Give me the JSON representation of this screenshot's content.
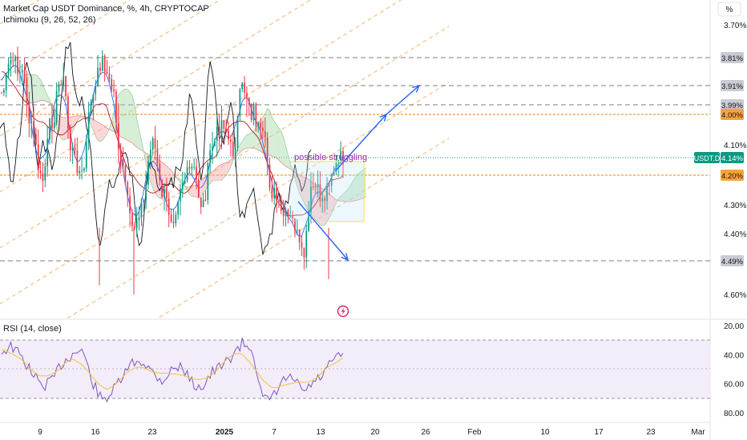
{
  "header": {
    "title": "Market Cap USDT Dominance, %, 4h, CRYPTOCAP",
    "indicator": "Ichimoku (9, 26, 52, 26)",
    "rsi_label": "RSI (14, close)"
  },
  "axis": {
    "unit_button": "%",
    "y_ticks": [
      "3.70%",
      "4.10%",
      "4.30%",
      "4.40%",
      "4.60%"
    ],
    "rsi_ticks": [
      "20.00",
      "40.00",
      "60.00",
      "80.00"
    ],
    "x_ticks": [
      "9",
      "16",
      "23",
      "2025",
      "7",
      "13",
      "20",
      "26",
      "Feb",
      "10",
      "17",
      "23",
      "Mar"
    ]
  },
  "price_levels": [
    {
      "label": "3.81%",
      "style": "gray"
    },
    {
      "label": "3.91%",
      "style": "gray"
    },
    {
      "label": "3.99%",
      "style": "gray"
    },
    {
      "label": "4.00%",
      "style": "orange"
    },
    {
      "label": "4.20%",
      "style": "orange"
    },
    {
      "label": "4.49%",
      "style": "gray"
    }
  ],
  "current_price": {
    "symbol": "USDT.D",
    "value": "4.14%",
    "color": "#089981"
  },
  "annotation": "possible struggling",
  "colors": {
    "up": "#089981",
    "down": "#f23645",
    "tenkan": "#2962ff",
    "kijun": "#b71c1c",
    "lagging": "#131722",
    "cloud_bull": "#a5d6a7",
    "cloud_bear": "#f8a5a5",
    "channel": "#f7b26b",
    "arrows": "#2962ff",
    "rsi_line": "#7e57c2",
    "rsi_ma": "#f5c242",
    "rsi_band": "#ede7f6",
    "annotation": "#9c27b0"
  },
  "chart_data": [
    {
      "type": "candlestick",
      "title": "Market Cap USDT Dominance, %, 4h, CRYPTOCAP",
      "x_range": [
        "Dec 5",
        "Mar 2"
      ],
      "inverted_y_axis": true,
      "last_value": 4.14,
      "series": [
        {
          "name": "USDT.D",
          "values": [
            3.94,
            3.82,
            3.86,
            4.05,
            4.22,
            4.02,
            3.88,
            4.12,
            4.2,
            3.96,
            3.82,
            3.92,
            4.18,
            4.38,
            4.3,
            4.08,
            4.26,
            4.34,
            4.22,
            4.18,
            4.3,
            4.1,
            4.02,
            4.12,
            3.92,
            4.0,
            4.08,
            4.26,
            4.34,
            4.36,
            4.48,
            4.24,
            4.28,
            4.18,
            4.14
          ]
        }
      ]
    },
    {
      "type": "line",
      "title": "RSI (14, close)",
      "ylim": [
        20,
        80
      ],
      "series": [
        {
          "name": "RSI",
          "values": [
            38,
            34,
            42,
            52,
            62,
            58,
            46,
            40,
            36,
            58,
            72,
            66,
            56,
            46,
            44,
            52,
            58,
            50,
            48,
            60,
            62,
            52,
            48,
            40,
            32,
            36,
            72,
            70,
            58,
            56,
            66,
            60,
            54,
            44,
            40
          ]
        }
      ]
    }
  ]
}
